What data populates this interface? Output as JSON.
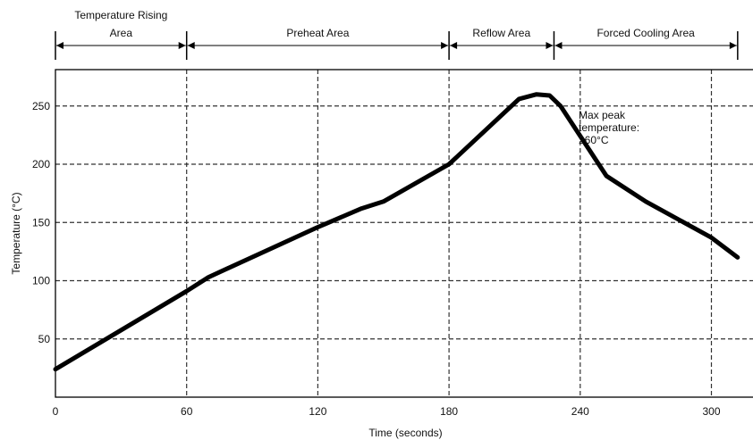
{
  "chart_data": {
    "type": "line",
    "xlabel": "Time (seconds)",
    "ylabel": "Temperature (°C)",
    "xlim": [
      0,
      320
    ],
    "ylim": [
      0,
      280
    ],
    "x_ticks": [
      0,
      60,
      120,
      180,
      240,
      300
    ],
    "y_ticks": [
      50,
      100,
      150,
      200,
      250
    ],
    "grid": true,
    "series": [
      {
        "points": [
          [
            0,
            24
          ],
          [
            60,
            91
          ],
          [
            70,
            103
          ],
          [
            120,
            146
          ],
          [
            140,
            162
          ],
          [
            150,
            168
          ],
          [
            180,
            200
          ],
          [
            212,
            256
          ],
          [
            220,
            260
          ],
          [
            226,
            259
          ],
          [
            231,
            250
          ],
          [
            252,
            190
          ],
          [
            270,
            168
          ],
          [
            300,
            137
          ],
          [
            312,
            120
          ]
        ]
      }
    ],
    "zones": [
      {
        "label_line1": "Temperature Rising",
        "label_line2": "Area",
        "start": 0,
        "end": 60
      },
      {
        "label_line1": "",
        "label_line2": "Preheat Area",
        "start": 60,
        "end": 180
      },
      {
        "label_line1": "",
        "label_line2": "Reflow Area",
        "start": 180,
        "end": 228
      },
      {
        "label_line1": "",
        "label_line2": "Forced Cooling Area",
        "start": 228,
        "end": 312
      }
    ],
    "annotation": {
      "lines": [
        "Max  peak",
        "temperature:",
        "260°C"
      ]
    }
  }
}
